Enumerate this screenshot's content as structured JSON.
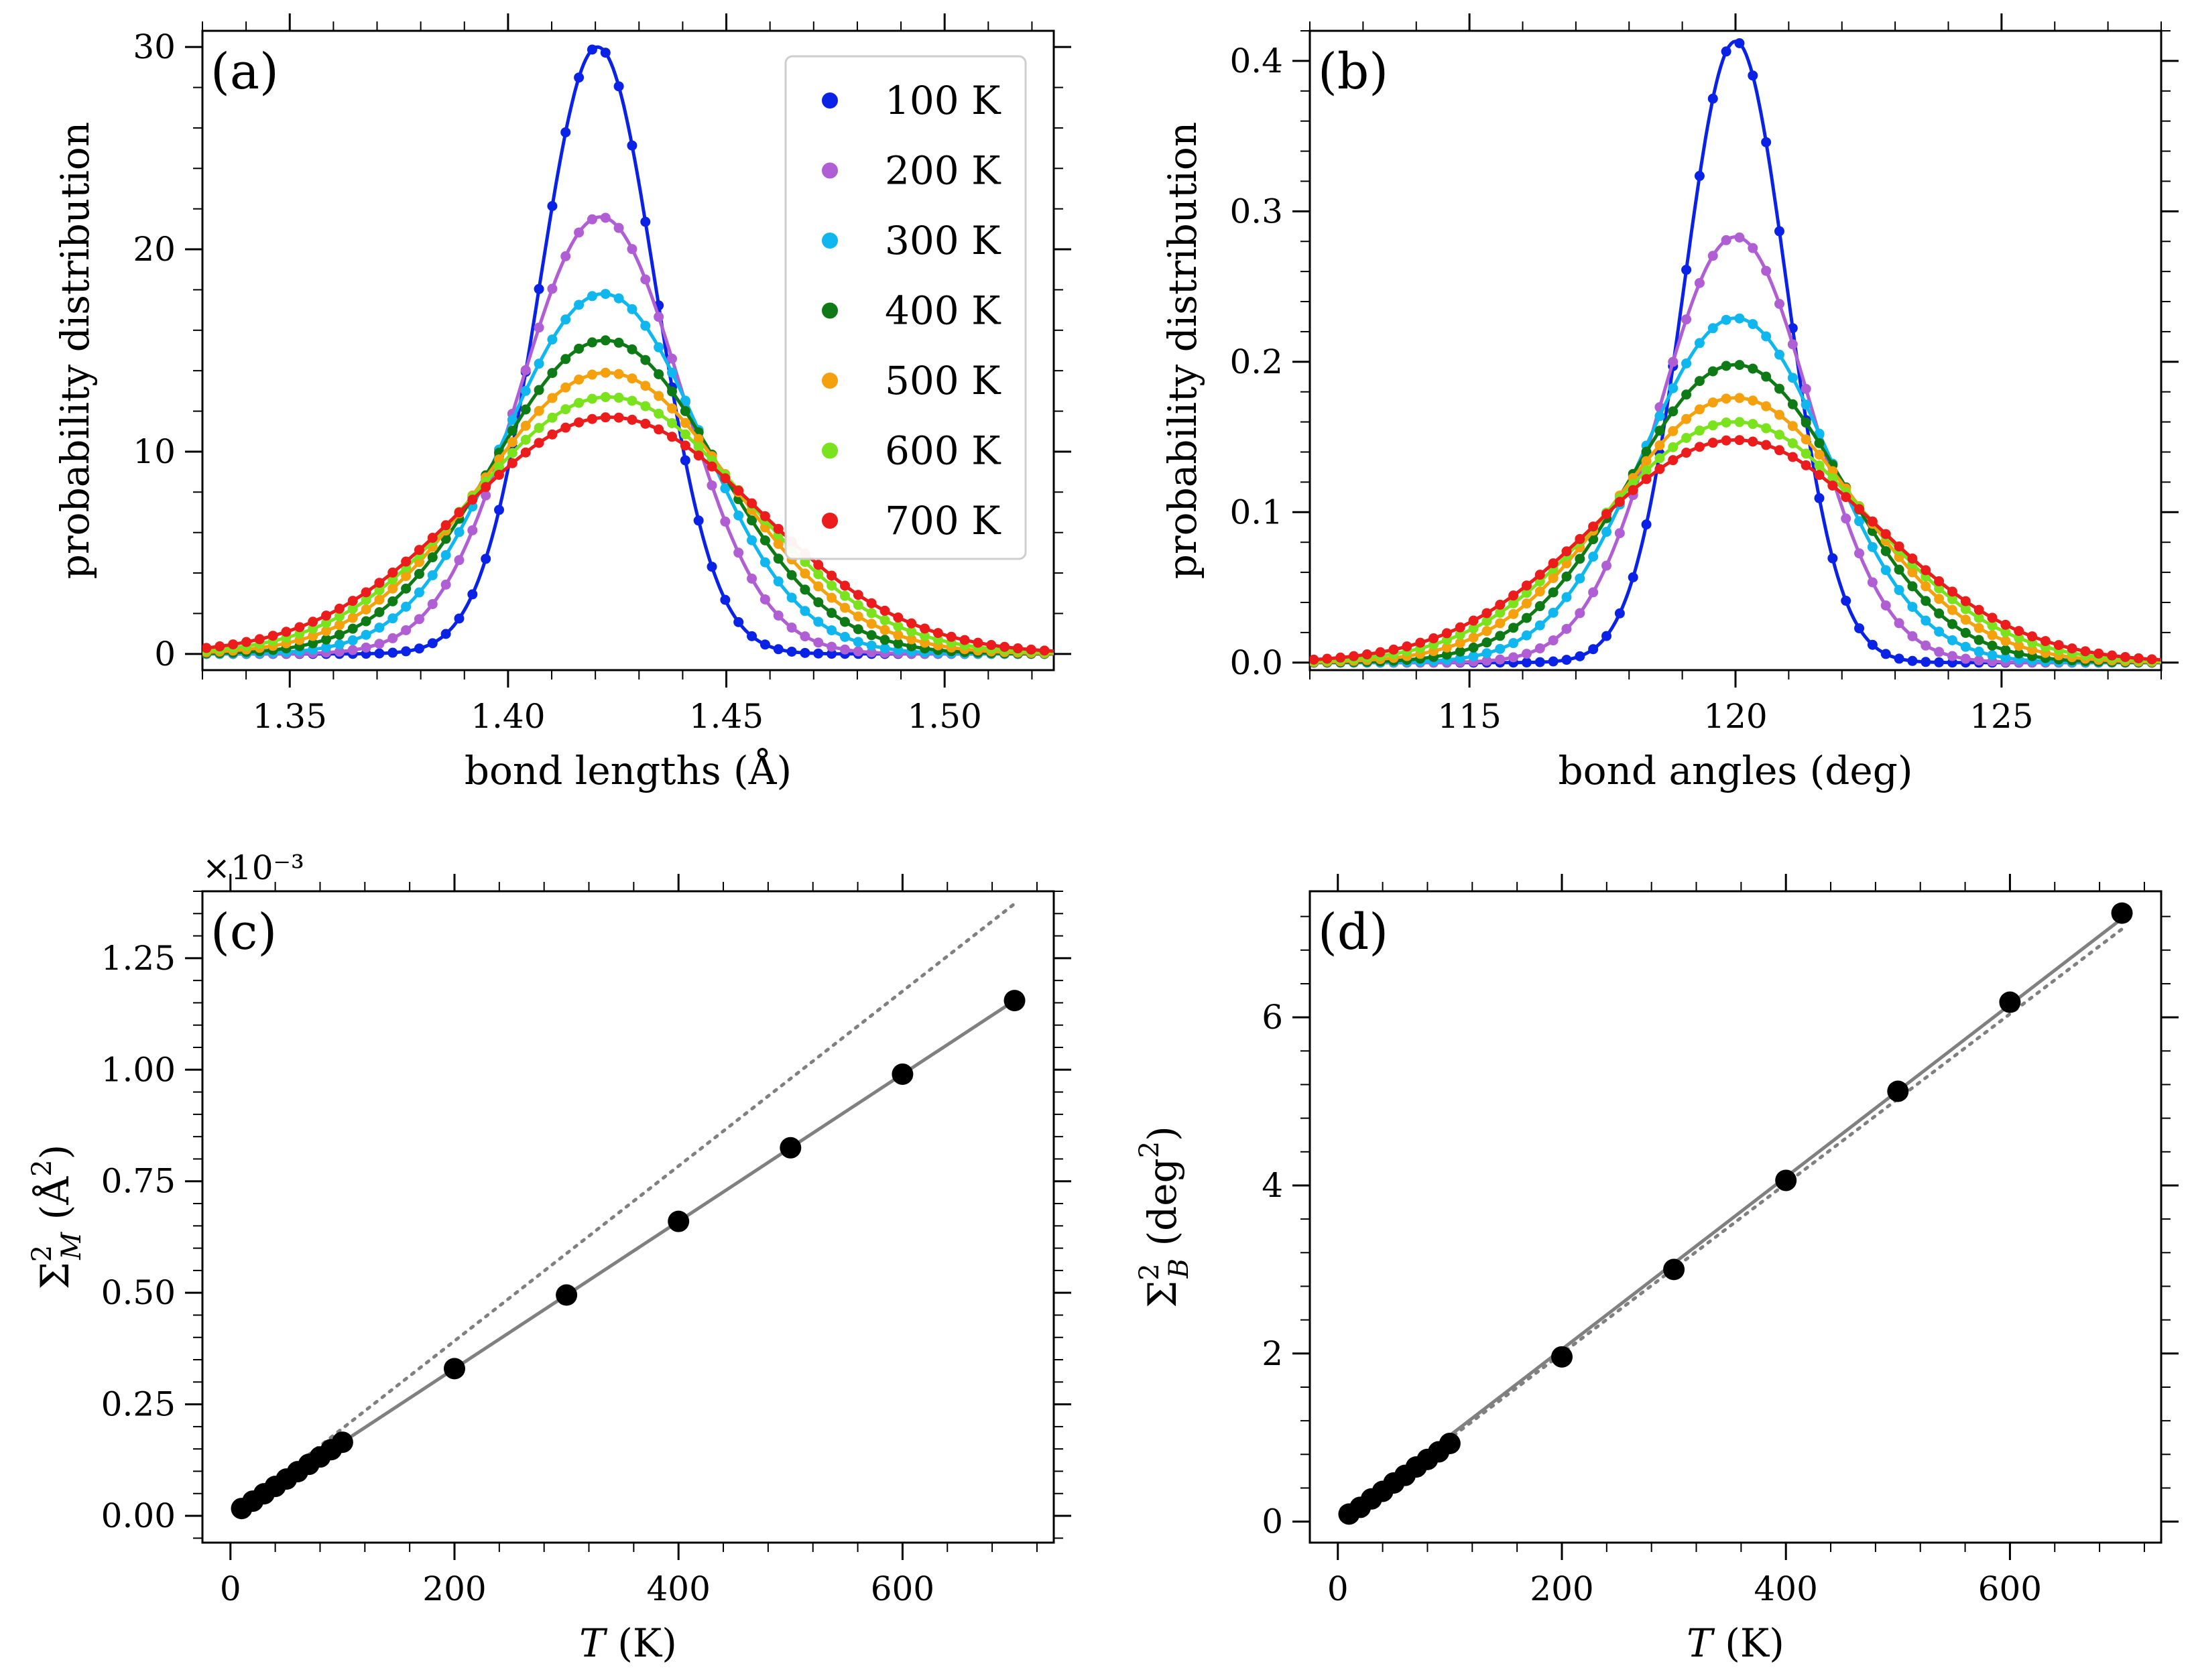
{
  "legend_labels": [
    "100 K",
    "200 K",
    "300 K",
    "400 K",
    "500 K",
    "600 K",
    "700 K"
  ],
  "chart_data": [
    {
      "panel": "(a)",
      "type": "line",
      "xlabel": "bond lengths (Å)",
      "ylabel": "probability distribution",
      "xlim": [
        1.33,
        1.525
      ],
      "ylim": [
        -0.8,
        30.8
      ],
      "xticks": [
        1.35,
        1.4,
        1.45,
        1.5
      ],
      "xtick_labels": [
        "1.35",
        "1.40",
        "1.45",
        "1.50"
      ],
      "yticks": [
        0,
        10,
        20,
        30
      ],
      "ytick_labels": [
        "0",
        "10",
        "20",
        "30"
      ],
      "legend_position": "top-right",
      "series": [
        {
          "name": "100 K",
          "color": "#0a22e6",
          "mean": 1.4205,
          "peak": 30.0
        },
        {
          "name": "200 K",
          "color": "#b05ed4",
          "mean": 1.4212,
          "peak": 21.6
        },
        {
          "name": "300 K",
          "color": "#0fb7ee",
          "mean": 1.4218,
          "peak": 17.8
        },
        {
          "name": "400 K",
          "color": "#0e7a16",
          "mean": 1.4222,
          "peak": 15.5
        },
        {
          "name": "500 K",
          "color": "#f5a00d",
          "mean": 1.4226,
          "peak": 13.9
        },
        {
          "name": "600 K",
          "color": "#7be21e",
          "mean": 1.423,
          "peak": 12.7
        },
        {
          "name": "700 K",
          "color": "#ec1c1c",
          "mean": 1.4234,
          "peak": 11.7
        }
      ]
    },
    {
      "panel": "(b)",
      "type": "line",
      "xlabel": "bond angles (deg)",
      "ylabel": "probability distribution",
      "xlim": [
        112,
        128
      ],
      "ylim": [
        -0.005,
        0.42
      ],
      "xticks": [
        115,
        120,
        125
      ],
      "xtick_labels": [
        "115",
        "120",
        "125"
      ],
      "yticks": [
        0.0,
        0.1,
        0.2,
        0.3,
        0.4
      ],
      "ytick_labels": [
        "0.0",
        "0.1",
        "0.2",
        "0.3",
        "0.4"
      ],
      "series": [
        {
          "name": "100 K",
          "color": "#0a22e6",
          "mean": 120,
          "peak": 0.413
        },
        {
          "name": "200 K",
          "color": "#b05ed4",
          "mean": 120,
          "peak": 0.283
        },
        {
          "name": "300 K",
          "color": "#0fb7ee",
          "mean": 120,
          "peak": 0.229
        },
        {
          "name": "400 K",
          "color": "#0e7a16",
          "mean": 120,
          "peak": 0.198
        },
        {
          "name": "500 K",
          "color": "#f5a00d",
          "mean": 120,
          "peak": 0.176
        },
        {
          "name": "600 K",
          "color": "#7be21e",
          "mean": 120,
          "peak": 0.16
        },
        {
          "name": "700 K",
          "color": "#ec1c1c",
          "mean": 120,
          "peak": 0.148
        }
      ]
    },
    {
      "panel": "(c)",
      "type": "scatter",
      "xlabel": "T (K)",
      "ylabel": "Σ²_M (Å²)",
      "multiplier": "×10⁻³",
      "xlim": [
        -25,
        735
      ],
      "ylim": [
        -0.06,
        1.4
      ],
      "xticks": [
        0,
        200,
        400,
        600
      ],
      "xtick_labels": [
        "0",
        "200",
        "400",
        "600"
      ],
      "yticks": [
        0.0,
        0.25,
        0.5,
        0.75,
        1.0,
        1.25
      ],
      "ytick_labels": [
        "0.00",
        "0.25",
        "0.50",
        "0.75",
        "1.00",
        "1.25"
      ],
      "x": [
        10,
        20,
        30,
        40,
        50,
        60,
        70,
        80,
        90,
        100,
        200,
        300,
        400,
        500,
        600,
        700
      ],
      "y": [
        0.0165,
        0.033,
        0.0495,
        0.066,
        0.0825,
        0.099,
        0.1155,
        0.132,
        0.1485,
        0.165,
        0.33,
        0.495,
        0.66,
        0.825,
        0.99,
        1.155
      ],
      "fit_line": {
        "slope": 0.00165,
        "intercept": 0.0
      },
      "dotted_line": {
        "slope": 0.00196,
        "intercept": 0.0
      }
    },
    {
      "panel": "(d)",
      "type": "scatter",
      "xlabel": "T (K)",
      "ylabel": "Σ²_B (deg²)",
      "xlim": [
        -25,
        735
      ],
      "ylim": [
        -0.25,
        7.5
      ],
      "xticks": [
        0,
        200,
        400,
        600
      ],
      "xtick_labels": [
        "0",
        "200",
        "400",
        "600"
      ],
      "yticks": [
        0,
        2,
        4,
        6
      ],
      "ytick_labels": [
        "0",
        "2",
        "4",
        "6"
      ],
      "x": [
        10,
        20,
        30,
        40,
        50,
        60,
        70,
        80,
        90,
        100,
        200,
        300,
        400,
        500,
        600,
        700
      ],
      "y": [
        0.09,
        0.17,
        0.27,
        0.36,
        0.46,
        0.55,
        0.65,
        0.74,
        0.83,
        0.93,
        1.96,
        3.0,
        4.06,
        5.12,
        6.18,
        7.24
      ],
      "fit_line": {
        "slope": 0.01025,
        "intercept": 0.0
      },
      "dotted_line": {
        "slope": 0.0101,
        "intercept": -0.02
      }
    }
  ]
}
